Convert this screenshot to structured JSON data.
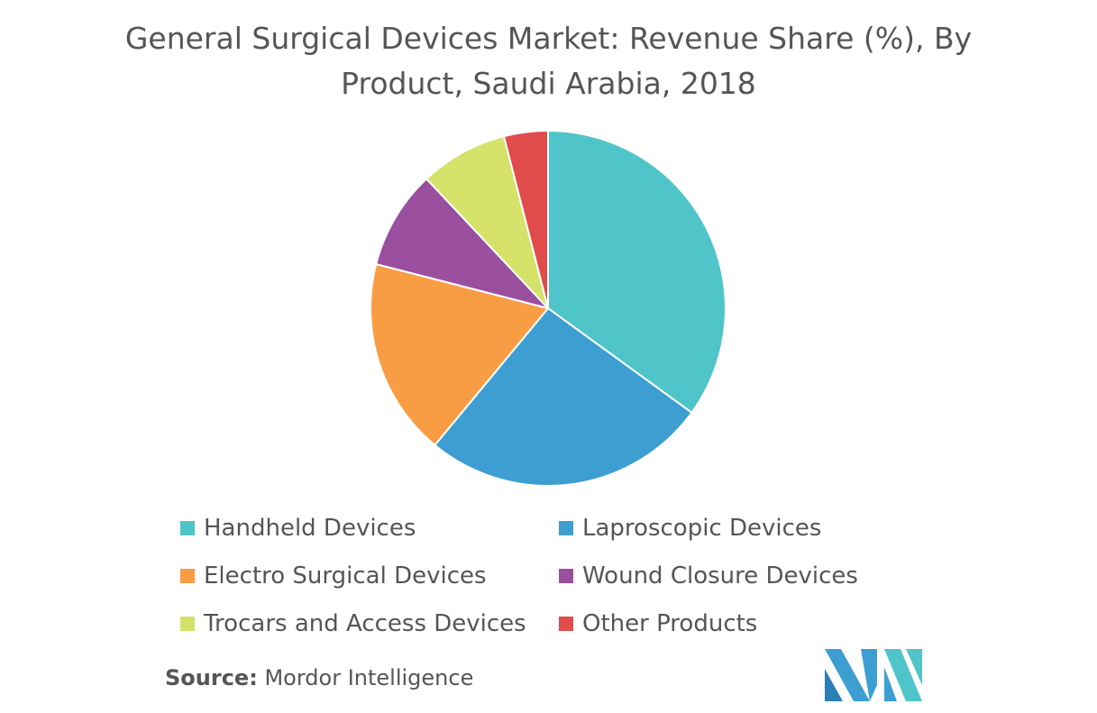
{
  "chart_data": {
    "type": "pie",
    "title": "General Surgical Devices Market: Revenue Share (%), By Product, Saudi Arabia, 2018",
    "categories": [
      "Handheld Devices",
      "Laproscopic Devices",
      "Electro Surgical Devices",
      "Wound Closure Devices",
      "Trocars and Access Devices",
      "Other Products"
    ],
    "values": [
      35,
      26,
      18,
      9,
      8,
      4
    ],
    "colors": [
      "#4fc4c9",
      "#3d9fd1",
      "#f99d45",
      "#9a4f9f",
      "#d4e26a",
      "#e04b4b"
    ]
  },
  "source": {
    "label": "Source:",
    "text": "Mordor Intelligence"
  }
}
